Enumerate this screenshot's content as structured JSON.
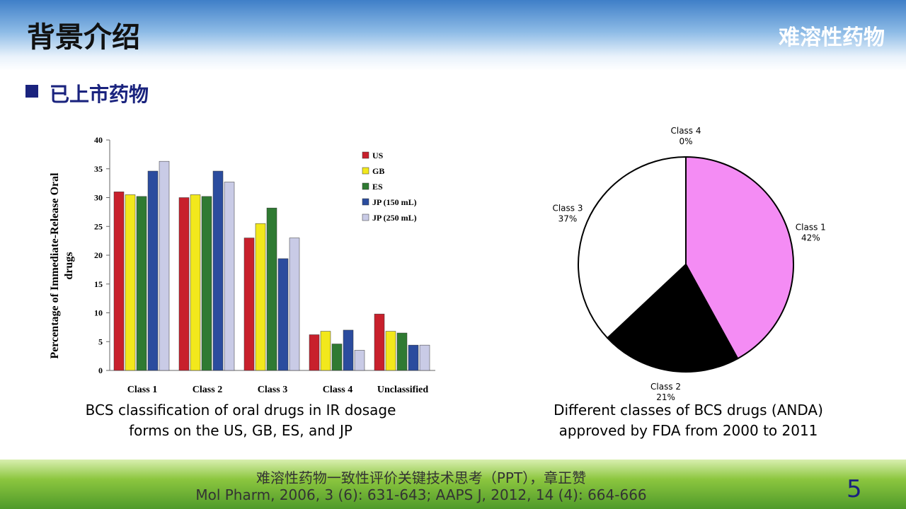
{
  "header": {
    "title": "背景介绍",
    "topic": "难溶性药物"
  },
  "section": "已上市药物",
  "chart_data": [
    {
      "type": "bar",
      "ylabel": "Percentage of Immediate-Release Oral drugs",
      "caption": "BCS classification of oral drugs in IR dosage forms on the US, GB, ES, and JP",
      "categories": [
        "Class 1",
        "Class 2",
        "Class 3",
        "Class 4",
        "Unclassified"
      ],
      "series": [
        {
          "name": "US",
          "color": "#c8202c",
          "values": [
            31,
            30,
            23,
            6.2,
            9.8
          ]
        },
        {
          "name": "GB",
          "color": "#f2e81c",
          "values": [
            30.5,
            30.5,
            25.5,
            6.8,
            6.8
          ]
        },
        {
          "name": "ES",
          "color": "#2f7a32",
          "values": [
            30.2,
            30.2,
            28.2,
            4.6,
            6.5
          ]
        },
        {
          "name": "JP (150 mL)",
          "color": "#2b4c9e",
          "values": [
            34.6,
            34.6,
            19.4,
            7,
            4.4
          ]
        },
        {
          "name": "JP (250 mL)",
          "color": "#c9cbe6",
          "values": [
            36.3,
            32.7,
            23,
            3.5,
            4.4
          ]
        }
      ],
      "ylim": [
        0,
        40
      ],
      "yticks": [
        0,
        5,
        10,
        15,
        20,
        25,
        30,
        35,
        40
      ]
    },
    {
      "type": "pie",
      "caption": "Different classes of BCS drugs (ANDA) approved by FDA from 2000 to 2011",
      "categories": [
        "Class 1",
        "Class 2",
        "Class 3",
        "Class 4"
      ],
      "values": [
        42,
        21,
        37,
        0
      ],
      "value_labels": [
        "42%",
        "21%",
        "37%",
        "0%"
      ],
      "colors": [
        "#f48cf4",
        "#000000",
        "#ffffff",
        "#ffffff"
      ]
    }
  ],
  "footer": {
    "citation_cn": "难溶性药物一致性评价关键技术思考（PPT），章正赞",
    "citation_en": "Mol Pharm, 2006, 3 (6): 631-643; AAPS J, 2012, 14 (4): 664-666",
    "page": 5
  }
}
